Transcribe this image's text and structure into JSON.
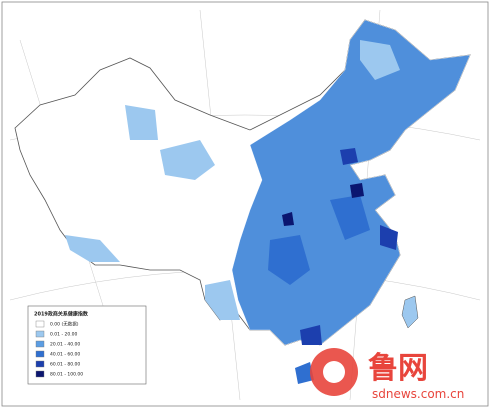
{
  "legend": {
    "title": "2019政商关系健康指数",
    "items": [
      {
        "label": "0.00 (无数据)",
        "color": "#ffffff"
      },
      {
        "label": "0.01 - 20.00",
        "color": "#9cc8ef"
      },
      {
        "label": "20.01 - 40.00",
        "color": "#5b9de3"
      },
      {
        "label": "40.01 - 60.00",
        "color": "#2f6fd0"
      },
      {
        "label": "60.01 - 80.00",
        "color": "#1c3fae"
      },
      {
        "label": "80.01 - 100.00",
        "color": "#0b1670"
      }
    ]
  },
  "watermark": {
    "brand": "鲁网",
    "site": "sdnews.com.cn"
  }
}
